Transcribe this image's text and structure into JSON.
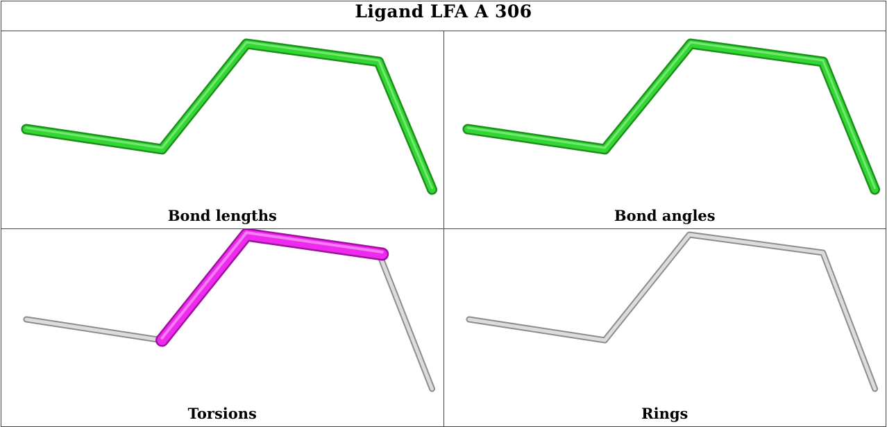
{
  "title": "Ligand LFA A 306",
  "panels": [
    {
      "caption": "Bond lengths",
      "highlight_color": "#28c828",
      "base_color": "#28c828"
    },
    {
      "caption": "Bond angles",
      "highlight_color": "#28c828",
      "base_color": "#28c828"
    },
    {
      "caption": "Torsions",
      "highlight_color": "#e020e0",
      "base_color": "#c4c4c4"
    },
    {
      "caption": "Rings",
      "highlight_color": "#c4c4c4",
      "base_color": "#c4c4c4"
    }
  ]
}
